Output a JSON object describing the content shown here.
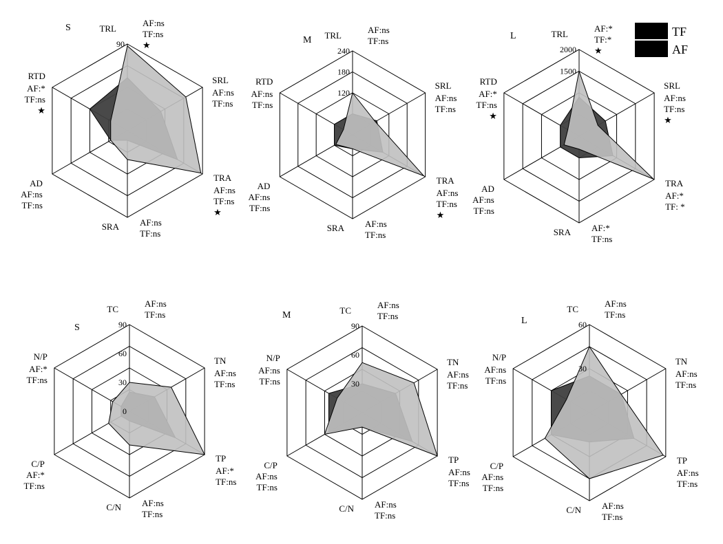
{
  "legend": {
    "items": [
      {
        "label": "TF",
        "color": "#000000"
      },
      {
        "label": "AF",
        "color": "#000000"
      }
    ]
  },
  "colors": {
    "tf_fill": "#3f3f3f",
    "af_fill": "#c0c0c0",
    "grid": "#000000"
  },
  "chart_data": [
    {
      "type": "radar",
      "panel": "S",
      "axes": [
        "TRL",
        "SRL",
        "TRA",
        "SRA",
        "AD",
        "RTD"
      ],
      "max": 90,
      "ticks": [
        90
      ],
      "stats": [
        [
          "AF:ns",
          "TF:ns",
          "★"
        ],
        [
          "AF:ns",
          "TF:ns"
        ],
        [
          "AF:ns",
          "TF:ns",
          "★"
        ],
        [
          "AF:ns",
          "TF:ns"
        ],
        [
          "AF:ns",
          "TF:ns"
        ],
        [
          "AF:*",
          "TF:ns",
          "★"
        ]
      ],
      "series": [
        {
          "name": "TF",
          "values": [
            55,
            40,
            60,
            10,
            20,
            45
          ]
        },
        {
          "name": "AF",
          "values": [
            88,
            70,
            88,
            30,
            20,
            20
          ]
        }
      ]
    },
    {
      "type": "radar",
      "panel": "M",
      "axes": [
        "TRL",
        "SRL",
        "TRA",
        "SRA",
        "AD",
        "RTD"
      ],
      "max": 240,
      "ticks": [
        120,
        180,
        240
      ],
      "stats": [
        [
          "AF:ns",
          "TF:ns"
        ],
        [
          "AF:ns",
          "TF:ns"
        ],
        [
          "AF:ns",
          "TF:ns",
          "★"
        ],
        [
          "AF:ns",
          "TF:ns"
        ],
        [
          "AF:ns",
          "TF:ns"
        ],
        [
          "AF:ns",
          "TF:ns"
        ]
      ],
      "series": [
        {
          "name": "TF",
          "values": [
            60,
            80,
            100,
            40,
            60,
            60
          ]
        },
        {
          "name": "AF",
          "values": [
            120,
            75,
            235,
            40,
            55,
            30
          ]
        }
      ]
    },
    {
      "type": "radar",
      "panel": "L",
      "axes": [
        "TRL",
        "SRL",
        "TRA",
        "SRA",
        "AD",
        "RTD"
      ],
      "max": 2000,
      "ticks": [
        1500,
        2000
      ],
      "stats": [
        [
          "AF:*",
          "TF:*",
          "★"
        ],
        [
          "AF:ns",
          "TF:ns",
          "★"
        ],
        [
          "AF:*",
          "TF: *"
        ],
        [
          "AF:*",
          "TF:ns"
        ],
        [
          "AF:ns",
          "TF:ns"
        ],
        [
          "AF:*",
          "TF:ns",
          "★"
        ]
      ],
      "series": [
        {
          "name": "TF",
          "values": [
            900,
            700,
            900,
            500,
            500,
            500
          ]
        },
        {
          "name": "AF",
          "values": [
            1500,
            500,
            1980,
            300,
            400,
            300
          ]
        }
      ]
    },
    {
      "type": "radar",
      "panel": "S",
      "axes": [
        "TC",
        "TN",
        "TP",
        "C/N",
        "C/P",
        "N/P"
      ],
      "max": 90,
      "ticks": [
        0,
        30,
        60,
        90
      ],
      "stats": [
        [
          "AF:ns",
          "TF:ns"
        ],
        [
          "AF:ns",
          "TF:ns"
        ],
        [
          "AF:*",
          "TF:ns"
        ],
        [
          "AF:ns",
          "TF:ns"
        ],
        [
          "AF:*",
          "TF:ns"
        ],
        [
          "AF:*",
          "TF:ns"
        ]
      ],
      "series": [
        {
          "name": "TF",
          "values": [
            20,
            30,
            55,
            10,
            10,
            10
          ]
        },
        {
          "name": "AF",
          "values": [
            30,
            50,
            90,
            35,
            25,
            20
          ]
        }
      ]
    },
    {
      "type": "radar",
      "panel": "M",
      "axes": [
        "TC",
        "TN",
        "TP",
        "C/N",
        "C/P",
        "N/P"
      ],
      "max": 90,
      "ticks": [
        30,
        60,
        90
      ],
      "stats": [
        [
          "AF:ns",
          "TF:ns"
        ],
        [
          "AF:ns",
          "TF:ns"
        ],
        [
          "AF:ns",
          "TF:ns"
        ],
        [
          "AF:ns",
          "TF:ns"
        ],
        [
          "AF:ns",
          "TF:ns"
        ],
        [
          "AF:ns",
          "TF:ns"
        ]
      ],
      "series": [
        {
          "name": "TF",
          "values": [
            30,
            40,
            60,
            15,
            40,
            40
          ]
        },
        {
          "name": "AF",
          "values": [
            52,
            62,
            90,
            15,
            45,
            30
          ]
        }
      ]
    },
    {
      "type": "radar",
      "panel": "L",
      "axes": [
        "TC",
        "TN",
        "TP",
        "C/N",
        "C/P",
        "N/P"
      ],
      "max": 60,
      "ticks": [
        30,
        60
      ],
      "stats": [
        [
          "AF:ns",
          "TF:ns"
        ],
        [
          "AF:ns",
          "TF:ns"
        ],
        [
          "AF:ns",
          "TF:ns"
        ],
        [
          "AF:ns",
          "TF:ns"
        ],
        [
          "AF:ns",
          "TF:ns"
        ],
        [
          "AF:ns",
          "TF:ns"
        ]
      ],
      "series": [
        {
          "name": "TF",
          "values": [
            25,
            25,
            35,
            20,
            30,
            30
          ]
        },
        {
          "name": "AF",
          "values": [
            45,
            25,
            58,
            45,
            35,
            18
          ]
        }
      ]
    }
  ]
}
